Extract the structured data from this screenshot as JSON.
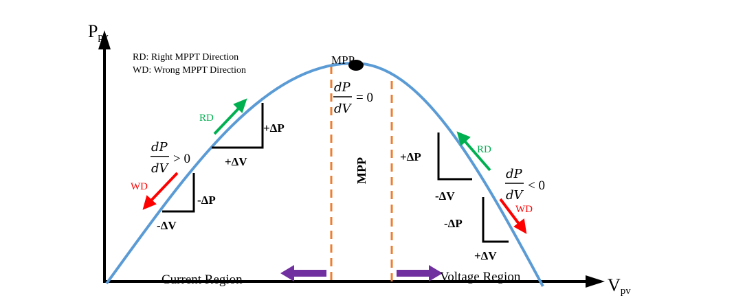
{
  "axes": {
    "y_label_main": "P",
    "y_label_sub": "pv",
    "x_label_main": "V",
    "x_label_sub": "pv"
  },
  "legend": {
    "rd": "RD: Right MPPT Direction",
    "wd": "WD: Wrong MPPT Direction"
  },
  "mpp_point_label": "MPP",
  "mpp_region_label": "MPP",
  "derivatives": {
    "left": {
      "num": "dP",
      "den": "dV",
      "rel": "> 0"
    },
    "middle": {
      "num": "dP",
      "den": "dV",
      "rel": "= 0"
    },
    "right": {
      "num": "dP",
      "den": "dV",
      "rel": "< 0"
    }
  },
  "left_side": {
    "rd": "RD",
    "wd": "WD",
    "plus_dp": "+ΔP",
    "plus_dv": "+ΔV",
    "minus_dp": "-ΔP",
    "minus_dv": "-ΔV"
  },
  "right_side": {
    "rd": "RD",
    "wd": "WD",
    "plus_dp": "+ΔP",
    "minus_dv": "-ΔV",
    "minus_dp": "-ΔP",
    "plus_dv": "+ΔV"
  },
  "regions": {
    "current": "Current Region",
    "voltage": "Voltage Region"
  },
  "colors": {
    "curve": "#5b9bd5",
    "orange": "#ed7d31",
    "green": "#00b050",
    "red": "#ff0000",
    "purple": "#7030a0",
    "axis": "#000000"
  }
}
